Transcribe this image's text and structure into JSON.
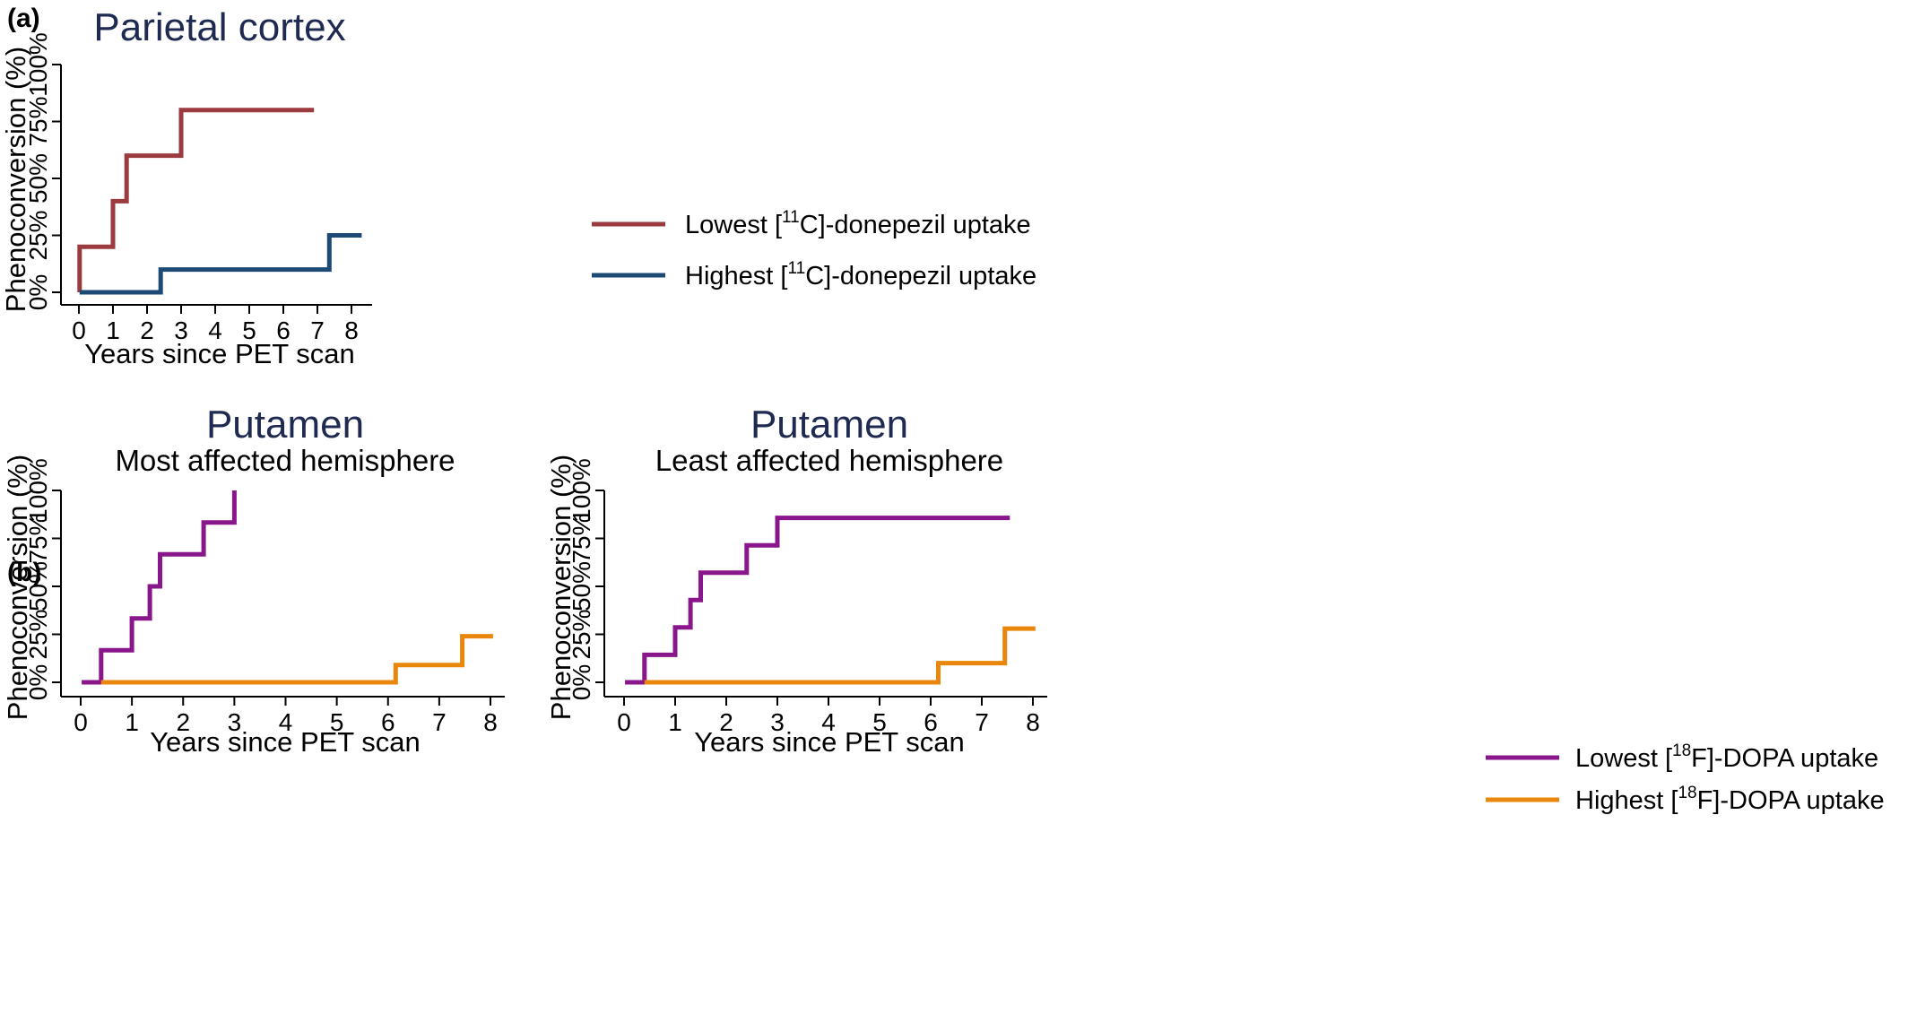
{
  "panels": {
    "a": {
      "label": "(a)"
    },
    "b": {
      "label": "(b)"
    }
  },
  "chart_data": [
    {
      "type": "line",
      "step": true,
      "title": "Parietal cortex",
      "subtitle": "",
      "xlabel": "Years since PET scan",
      "ylabel": "Phenoconversion (%)",
      "xlim": [
        0,
        8
      ],
      "ylim": [
        0,
        100
      ],
      "xticks": [
        "0",
        "1",
        "2",
        "3",
        "4",
        "5",
        "6",
        "7",
        "8"
      ],
      "yticks": [
        "0%",
        "25%",
        "50%",
        "75%",
        "100%"
      ],
      "grid": false,
      "legend_position": "right",
      "series": [
        {
          "name": "Lowest [11C]-donepezil uptake",
          "color": "#9b3a3f",
          "x": [
            0.02,
            0.02,
            1.0,
            1.0,
            1.4,
            1.4,
            3.0,
            3.0,
            6.9
          ],
          "y": [
            0,
            20,
            20,
            40,
            40,
            60,
            60,
            80,
            80
          ]
        },
        {
          "name": "Highest [11C]-donepezil uptake",
          "color": "#1d4a75",
          "x": [
            0.02,
            2.4,
            2.4,
            7.35,
            7.35,
            8.3
          ],
          "y": [
            0,
            0,
            10,
            10,
            25,
            25
          ]
        }
      ]
    },
    {
      "type": "line",
      "step": true,
      "title": "Putamen",
      "subtitle": "Most affected hemisphere",
      "xlabel": "Years since PET scan",
      "ylabel": "Phenoconversion (%)",
      "xlim": [
        0,
        8
      ],
      "ylim": [
        0,
        100
      ],
      "xticks": [
        "0",
        "1",
        "2",
        "3",
        "4",
        "5",
        "6",
        "7",
        "8"
      ],
      "yticks": [
        "0%",
        "25%",
        "50%",
        "75%",
        "100%"
      ],
      "grid": false,
      "legend_position": "right",
      "series": [
        {
          "name": "Lowest [18F]-DOPA uptake",
          "color": "#8a168c",
          "x": [
            0.02,
            0.4,
            0.4,
            1.0,
            1.0,
            1.35,
            1.35,
            1.55,
            1.55,
            2.4,
            2.4,
            3.0,
            3.0
          ],
          "y": [
            0,
            0,
            16.7,
            16.7,
            33.3,
            33.3,
            50,
            50,
            66.7,
            66.7,
            83.3,
            83.3,
            100
          ]
        },
        {
          "name": "Highest [18F]-DOPA uptake",
          "color": "#e8870b",
          "x": [
            0.4,
            6.15,
            6.15,
            7.45,
            7.45,
            8.05
          ],
          "y": [
            0,
            0,
            9,
            9,
            24,
            24
          ]
        }
      ]
    },
    {
      "type": "line",
      "step": true,
      "title": "Putamen",
      "subtitle": "Least affected hemisphere",
      "xlabel": "Years since PET scan",
      "ylabel": "Phenoconversion (%)",
      "xlim": [
        0,
        8
      ],
      "ylim": [
        0,
        100
      ],
      "xticks": [
        "0",
        "1",
        "2",
        "3",
        "4",
        "5",
        "6",
        "7",
        "8"
      ],
      "yticks": [
        "0%",
        "25%",
        "50%",
        "75%",
        "100%"
      ],
      "grid": false,
      "legend_position": "right",
      "series": [
        {
          "name": "Lowest [18F]-DOPA uptake",
          "color": "#8a168c",
          "x": [
            0.02,
            0.4,
            0.4,
            1.0,
            1.0,
            1.3,
            1.3,
            1.5,
            1.5,
            2.4,
            2.4,
            3.0,
            3.0,
            7.55
          ],
          "y": [
            0,
            0,
            14.3,
            14.3,
            28.6,
            28.6,
            42.9,
            42.9,
            57.1,
            57.1,
            71.4,
            71.4,
            85.7,
            85.7
          ]
        },
        {
          "name": "Highest [18F]-DOPA uptake",
          "color": "#e8870b",
          "x": [
            0.4,
            6.15,
            6.15,
            7.45,
            7.45,
            8.05
          ],
          "y": [
            0,
            0,
            10,
            10,
            28,
            28
          ]
        }
      ]
    }
  ],
  "legends": {
    "a": {
      "entries": [
        {
          "prefix": "Lowest [",
          "sup": "11",
          "suffix": "C]-donepezil uptake",
          "color": "#9b3a3f"
        },
        {
          "prefix": "Highest [",
          "sup": "11",
          "suffix": "C]-donepezil uptake",
          "color": "#1d4a75"
        }
      ]
    },
    "b": {
      "entries": [
        {
          "prefix": "Lowest [",
          "sup": "18",
          "suffix": "F]-DOPA uptake",
          "color": "#8a168c"
        },
        {
          "prefix": "Highest [",
          "sup": "18",
          "suffix": "F]-DOPA uptake",
          "color": "#e8870b"
        }
      ]
    }
  }
}
